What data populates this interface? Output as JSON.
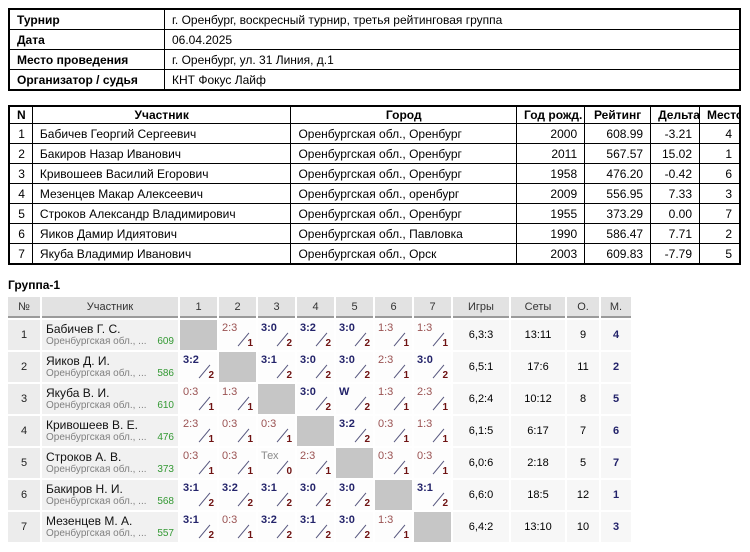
{
  "info": {
    "rows": [
      {
        "label": "Турнир",
        "value": "г. Оренбург, воскресный турнир, третья рейтинговая группа"
      },
      {
        "label": "Дата",
        "value": "06.04.2025"
      },
      {
        "label": "Место проведения",
        "value": "г. Оренбург, ул. 31 Линия, д.1"
      },
      {
        "label": "Организатор / судья",
        "value": "КНТ Фокус Лайф"
      }
    ]
  },
  "participants": {
    "headers": [
      "N",
      "Участник",
      "Город",
      "Год рожд.",
      "Рейтинг",
      "Дельта",
      "Место"
    ],
    "rows": [
      {
        "n": "1",
        "name": "Бабичев Георгий Сергеевич",
        "city": "Оренбургская обл., Оренбург",
        "year": "2000",
        "rating": "608.99",
        "delta": "-3.21",
        "place": "4"
      },
      {
        "n": "2",
        "name": "Бакиров Назар Иванович",
        "city": "Оренбургская обл., Оренбург",
        "year": "2011",
        "rating": "567.57",
        "delta": "15.02",
        "place": "1"
      },
      {
        "n": "3",
        "name": "Кривошеев Василий Егорович",
        "city": "Оренбургская обл., Оренбург",
        "year": "1958",
        "rating": "476.20",
        "delta": "-0.42",
        "place": "6"
      },
      {
        "n": "4",
        "name": "Мезенцев Макар Алексеевич",
        "city": "Оренбургская обл., оренбург",
        "year": "2009",
        "rating": "556.95",
        "delta": "7.33",
        "place": "3"
      },
      {
        "n": "5",
        "name": "Строков Александр Владимирович",
        "city": "Оренбургская обл., Оренбург",
        "year": "1955",
        "rating": "373.29",
        "delta": "0.00",
        "place": "7"
      },
      {
        "n": "6",
        "name": "Яиков Дамир Идиятович",
        "city": "Оренбургская обл., Павловка",
        "year": "1990",
        "rating": "586.47",
        "delta": "7.71",
        "place": "2"
      },
      {
        "n": "7",
        "name": "Якуба Владимир Иванович",
        "city": "Оренбургская обл., Орск",
        "year": "2003",
        "rating": "609.83",
        "delta": "-7.79",
        "place": "5"
      }
    ]
  },
  "group": {
    "title": "Группа-1",
    "headers": {
      "num": "№",
      "participant": "Участник",
      "cols": [
        "1",
        "2",
        "3",
        "4",
        "5",
        "6",
        "7"
      ],
      "games": "Игры",
      "sets": "Сеты",
      "points": "О.",
      "place": "М."
    },
    "rows": [
      {
        "num": "1",
        "name": "Бабичев Г. С.",
        "region": "Оренбургская обл., ...",
        "rating": "609",
        "results": [
          {
            "type": "self"
          },
          {
            "type": "loss",
            "score": "2:3",
            "pts": "1"
          },
          {
            "type": "win",
            "score": "3:0",
            "pts": "2"
          },
          {
            "type": "win",
            "score": "3:2",
            "pts": "2"
          },
          {
            "type": "win",
            "score": "3:0",
            "pts": "2"
          },
          {
            "type": "loss",
            "score": "1:3",
            "pts": "1"
          },
          {
            "type": "loss",
            "score": "1:3",
            "pts": "1"
          }
        ],
        "games": "6,3:3",
        "sets": "13:11",
        "points": "9",
        "place": "4"
      },
      {
        "num": "2",
        "name": "Яиков Д. И.",
        "region": "Оренбургская обл., ...",
        "rating": "586",
        "results": [
          {
            "type": "win",
            "score": "3:2",
            "pts": "2"
          },
          {
            "type": "self"
          },
          {
            "type": "win",
            "score": "3:1",
            "pts": "2"
          },
          {
            "type": "win",
            "score": "3:0",
            "pts": "2"
          },
          {
            "type": "win",
            "score": "3:0",
            "pts": "2"
          },
          {
            "type": "loss",
            "score": "2:3",
            "pts": "1"
          },
          {
            "type": "win",
            "score": "3:0",
            "pts": "2"
          }
        ],
        "games": "6,5:1",
        "sets": "17:6",
        "points": "11",
        "place": "2"
      },
      {
        "num": "3",
        "name": "Якуба В. И.",
        "region": "Оренбургская обл., ...",
        "rating": "610",
        "results": [
          {
            "type": "loss",
            "score": "0:3",
            "pts": "1"
          },
          {
            "type": "loss",
            "score": "1:3",
            "pts": "1"
          },
          {
            "type": "self"
          },
          {
            "type": "win",
            "score": "3:0",
            "pts": "2"
          },
          {
            "type": "win",
            "score": "W",
            "pts": "2"
          },
          {
            "type": "loss",
            "score": "1:3",
            "pts": "1"
          },
          {
            "type": "loss",
            "score": "2:3",
            "pts": "1"
          }
        ],
        "games": "6,2:4",
        "sets": "10:12",
        "points": "8",
        "place": "5"
      },
      {
        "num": "4",
        "name": "Кривошеев В. Е.",
        "region": "Оренбургская обл., ...",
        "rating": "476",
        "results": [
          {
            "type": "loss",
            "score": "2:3",
            "pts": "1"
          },
          {
            "type": "loss",
            "score": "0:3",
            "pts": "1"
          },
          {
            "type": "loss",
            "score": "0:3",
            "pts": "1"
          },
          {
            "type": "self"
          },
          {
            "type": "win",
            "score": "3:2",
            "pts": "2"
          },
          {
            "type": "loss",
            "score": "0:3",
            "pts": "1"
          },
          {
            "type": "loss",
            "score": "1:3",
            "pts": "1"
          }
        ],
        "games": "6,1:5",
        "sets": "6:17",
        "points": "7",
        "place": "6"
      },
      {
        "num": "5",
        "name": "Строков А. В.",
        "region": "Оренбургская обл., ...",
        "rating": "373",
        "results": [
          {
            "type": "loss",
            "score": "0:3",
            "pts": "1"
          },
          {
            "type": "loss",
            "score": "0:3",
            "pts": "1"
          },
          {
            "type": "tech",
            "score": "Тех",
            "pts": "0"
          },
          {
            "type": "loss",
            "score": "2:3",
            "pts": "1"
          },
          {
            "type": "self"
          },
          {
            "type": "loss",
            "score": "0:3",
            "pts": "1"
          },
          {
            "type": "loss",
            "score": "0:3",
            "pts": "1"
          }
        ],
        "games": "6,0:6",
        "sets": "2:18",
        "points": "5",
        "place": "7"
      },
      {
        "num": "6",
        "name": "Бакиров Н. И.",
        "region": "Оренбургская обл., ...",
        "rating": "568",
        "results": [
          {
            "type": "win",
            "score": "3:1",
            "pts": "2"
          },
          {
            "type": "win",
            "score": "3:2",
            "pts": "2"
          },
          {
            "type": "win",
            "score": "3:1",
            "pts": "2"
          },
          {
            "type": "win",
            "score": "3:0",
            "pts": "2"
          },
          {
            "type": "win",
            "score": "3:0",
            "pts": "2"
          },
          {
            "type": "self"
          },
          {
            "type": "win",
            "score": "3:1",
            "pts": "2"
          }
        ],
        "games": "6,6:0",
        "sets": "18:5",
        "points": "12",
        "place": "1"
      },
      {
        "num": "7",
        "name": "Мезенцев М. А.",
        "region": "Оренбургская обл., ...",
        "rating": "557",
        "results": [
          {
            "type": "win",
            "score": "3:1",
            "pts": "2"
          },
          {
            "type": "loss",
            "score": "0:3",
            "pts": "1"
          },
          {
            "type": "win",
            "score": "3:2",
            "pts": "2"
          },
          {
            "type": "win",
            "score": "3:1",
            "pts": "2"
          },
          {
            "type": "win",
            "score": "3:0",
            "pts": "2"
          },
          {
            "type": "loss",
            "score": "1:3",
            "pts": "1"
          },
          {
            "type": "self"
          }
        ],
        "games": "6,4:2",
        "sets": "13:10",
        "points": "10",
        "place": "3"
      }
    ]
  },
  "colors": {
    "win_score": "#23236a",
    "loss_score": "#9a5252",
    "tech_score": "#8a8a8a",
    "match_points": "#6e1212",
    "rating_green": "#339933",
    "place_navy": "#23236a",
    "self_cell": "#c6c6c6"
  }
}
